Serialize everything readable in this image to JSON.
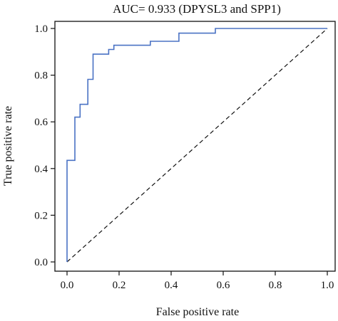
{
  "chart_data": {
    "type": "line",
    "title": "AUC= 0.933 (DPYSL3 and SPP1)",
    "xlabel": "False positive rate",
    "ylabel": "True positive rate",
    "xlim": [
      0,
      1
    ],
    "ylim": [
      0,
      1
    ],
    "xticks": [
      "0.0",
      "0.2",
      "0.4",
      "0.6",
      "0.8",
      "1.0"
    ],
    "yticks": [
      "0.0",
      "0.2",
      "0.4",
      "0.6",
      "0.8",
      "1.0"
    ],
    "grid": false,
    "series": [
      {
        "style": "solid",
        "color": "#4a72c4",
        "x": [
          0,
          0,
          0.03,
          0.03,
          0.05,
          0.05,
          0.08,
          0.08,
          0.1,
          0.1,
          0.16,
          0.16,
          0.18,
          0.18,
          0.32,
          0.32,
          0.43,
          0.43,
          0.57,
          0.57,
          1.0
        ],
        "y": [
          0,
          0.435,
          0.435,
          0.62,
          0.62,
          0.675,
          0.675,
          0.782,
          0.782,
          0.89,
          0.89,
          0.91,
          0.91,
          0.928,
          0.928,
          0.945,
          0.945,
          0.98,
          0.98,
          1.0,
          1.0
        ]
      },
      {
        "style": "dashed",
        "color": "#111111",
        "x": [
          0,
          1
        ],
        "y": [
          0,
          1
        ]
      }
    ]
  }
}
